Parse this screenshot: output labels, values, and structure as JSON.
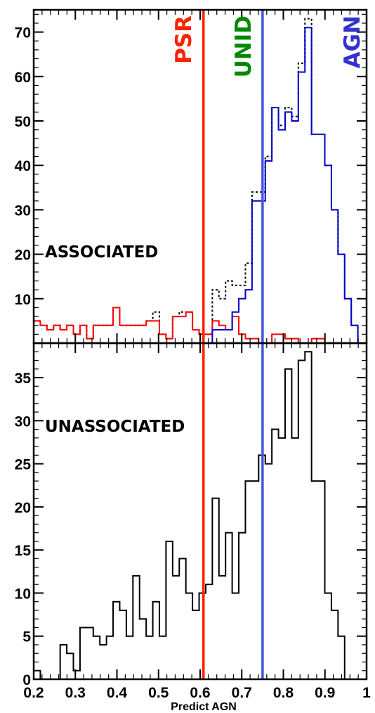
{
  "chart_data": [
    {
      "type": "histogram",
      "panel": "top",
      "panel_label": "ASSOCIATED",
      "xlim": [
        0.2,
        1.0
      ],
      "ylim": [
        0,
        75
      ],
      "y_ticks": [
        10,
        20,
        30,
        40,
        50,
        60,
        70
      ],
      "bin_edges_start": 0.2,
      "bin_width": 0.0159,
      "series": [
        {
          "color": "#000000",
          "style": "dotted",
          "values": [
            5,
            4,
            3,
            4,
            3,
            4,
            2,
            4,
            1,
            4,
            4,
            4,
            8,
            4,
            4,
            4,
            4,
            5,
            7,
            2,
            1,
            6,
            7,
            7,
            3,
            2,
            2,
            12,
            10,
            14,
            13,
            13,
            18,
            34,
            34,
            42,
            53,
            49,
            53,
            51,
            63,
            73,
            47,
            47,
            40,
            30,
            20,
            10,
            4,
            0
          ]
        },
        {
          "color": "#ff0000",
          "style": "solid",
          "values": [
            5,
            4,
            3,
            4,
            3,
            4,
            2,
            4,
            1,
            4,
            4,
            4,
            8,
            4,
            4,
            4,
            4,
            5,
            5,
            2,
            1,
            6,
            6,
            7,
            3,
            2,
            2,
            5,
            4,
            3,
            6,
            2,
            1,
            1,
            0,
            0,
            2,
            2,
            1,
            1,
            0,
            0,
            1,
            1,
            0,
            0,
            0,
            0,
            0,
            0
          ]
        },
        {
          "color": "#0000cc",
          "style": "solid",
          "values": [
            0,
            0,
            0,
            0,
            0,
            0,
            0,
            0,
            0,
            0,
            0,
            0,
            0,
            0,
            0,
            0,
            0,
            0,
            0,
            0,
            0,
            0,
            0,
            0,
            0,
            0,
            0,
            3,
            3,
            3,
            7,
            10,
            12,
            32,
            32,
            41,
            53,
            48,
            52,
            50,
            61,
            71,
            47,
            47,
            40,
            30,
            20,
            10,
            4,
            0
          ]
        }
      ],
      "vlines": [
        {
          "x": 0.608,
          "label": "PSR",
          "color": "#ff2200"
        },
        {
          "x": 0.742,
          "label": "UNID",
          "color": "#008800"
        },
        {
          "x": 0.75,
          "label": "AGN",
          "color": "#3333cc"
        }
      ]
    },
    {
      "type": "histogram",
      "panel": "bottom",
      "panel_label": "UNASSOCIATED",
      "xlim": [
        0.2,
        1.0
      ],
      "ylim": [
        0,
        39
      ],
      "y_ticks": [
        0,
        5,
        10,
        15,
        20,
        25,
        30,
        35
      ],
      "x_ticks": [
        0.2,
        0.3,
        0.4,
        0.5,
        0.6,
        0.7,
        0.8,
        0.9,
        1
      ],
      "x_tick_labels": [
        "0.2",
        "0.3",
        "0.4",
        "0.5",
        "0.6",
        "0.7",
        "0.8",
        "0.9",
        "1"
      ],
      "xlabel": "Predict AGN",
      "bin_edges_start": 0.2,
      "bin_width": 0.0159,
      "series": [
        {
          "color": "#000000",
          "style": "solid",
          "values": [
            1,
            0,
            0,
            0,
            4,
            3,
            1,
            6,
            6,
            5,
            4,
            5,
            9,
            8,
            5,
            12,
            7,
            5,
            9,
            5,
            16,
            12,
            14,
            10,
            8,
            10,
            11,
            21,
            12,
            17,
            10,
            17,
            23,
            23,
            26,
            25,
            29,
            28,
            36,
            28,
            37,
            38,
            23,
            23,
            10,
            8,
            5,
            0,
            0,
            0
          ]
        }
      ]
    }
  ]
}
